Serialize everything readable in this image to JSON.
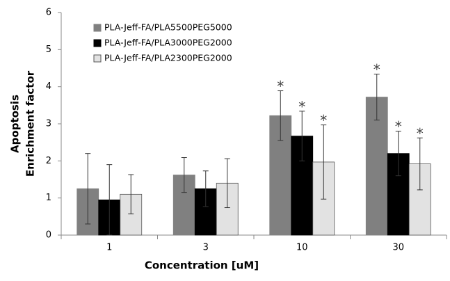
{
  "chart_data": {
    "type": "bar",
    "x_label": "Concentration [uM]",
    "y_label": [
      "Apoptosis",
      "Enrichment factor"
    ],
    "categories": [
      "1",
      "3",
      "10",
      "30"
    ],
    "series": [
      {
        "name": "PLA-Jeff-FA/PLA5500PEG5000",
        "color": "#808080",
        "values": [
          1.25,
          1.62,
          3.22,
          3.72
        ],
        "errors": [
          0.95,
          0.47,
          0.67,
          0.62
        ],
        "significance": [
          null,
          null,
          "*",
          "*"
        ]
      },
      {
        "name": "PLA-Jeff-FA/PLA3000PEG2000",
        "color": "#000000",
        "values": [
          0.95,
          1.25,
          2.67,
          2.2
        ],
        "errors": [
          0.95,
          0.48,
          0.67,
          0.6
        ],
        "significance": [
          null,
          null,
          "*",
          "*"
        ]
      },
      {
        "name": "PLA-Jeff-FA/PLA2300PEG2000",
        "color": "#e2e2e2",
        "values": [
          1.1,
          1.4,
          1.97,
          1.92
        ],
        "errors": [
          0.53,
          0.66,
          1.0,
          0.7
        ],
        "significance": [
          null,
          null,
          "*",
          "*"
        ]
      }
    ],
    "ylim": [
      0,
      6
    ],
    "yticks": [
      0,
      1,
      2,
      3,
      4,
      5,
      6
    ],
    "grid": false,
    "legend": "top-left"
  }
}
